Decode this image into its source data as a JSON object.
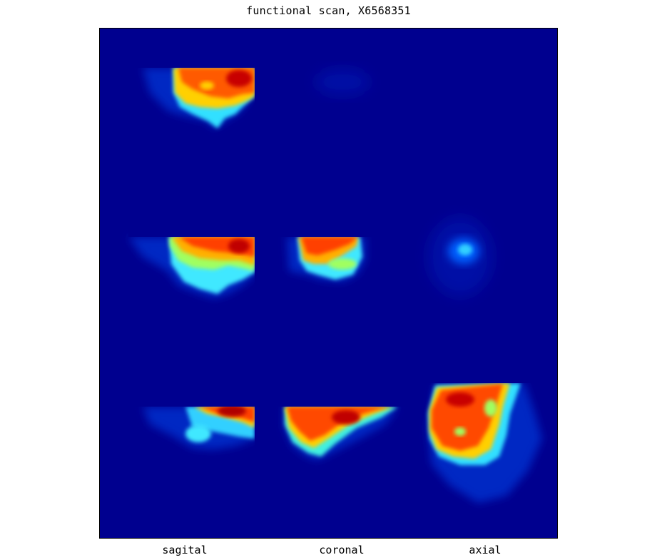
{
  "figure": {
    "title": "functional scan, X6568351",
    "column_labels": [
      "sagital",
      "coronal",
      "axial"
    ],
    "background_color": "#00008f",
    "colormap": "jet",
    "grid": {
      "rows": 3,
      "columns": 3
    }
  }
}
